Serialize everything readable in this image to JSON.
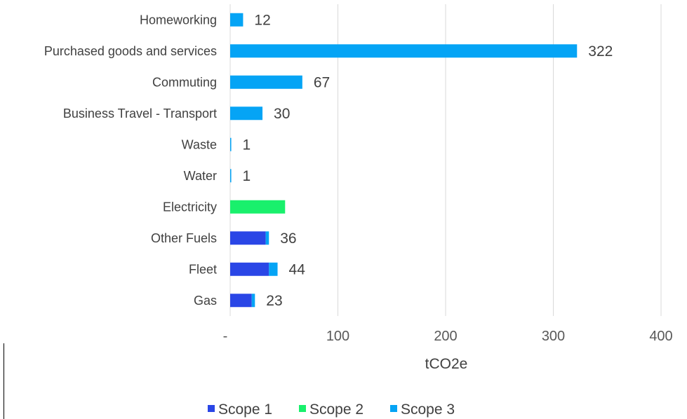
{
  "chart_data": {
    "type": "bar",
    "orientation": "horizontal",
    "stacked": true,
    "categories": [
      "Homeworking",
      "Purchased goods and services",
      "Commuting",
      "Business Travel - Transport",
      "Waste",
      "Water",
      "Electricity",
      "Other Fuels",
      "Fleet",
      "Gas"
    ],
    "series": [
      {
        "name": "Scope 1",
        "color": "#2a46e6",
        "values": [
          0,
          0,
          0,
          0,
          0,
          0,
          0,
          33,
          36,
          20
        ]
      },
      {
        "name": "Scope 2",
        "color": "#19f06c",
        "values": [
          0,
          0,
          0,
          0,
          0,
          0,
          51,
          0,
          0,
          0
        ]
      },
      {
        "name": "Scope 3",
        "color": "#05a4f5",
        "values": [
          12,
          322,
          67,
          30,
          1,
          1,
          0,
          3,
          8,
          3
        ]
      }
    ],
    "data_labels": [
      "12",
      "322",
      "67",
      "30",
      "1",
      "1",
      "",
      "36",
      "44",
      "23"
    ],
    "xlabel": "tCO2e",
    "xlim": [
      0,
      400
    ],
    "xticks": [
      0,
      100,
      200,
      300,
      400
    ],
    "xtick_labels": [
      "-",
      "100",
      "200",
      "300",
      "400"
    ],
    "grid": "vertical",
    "legend_position": "bottom"
  }
}
